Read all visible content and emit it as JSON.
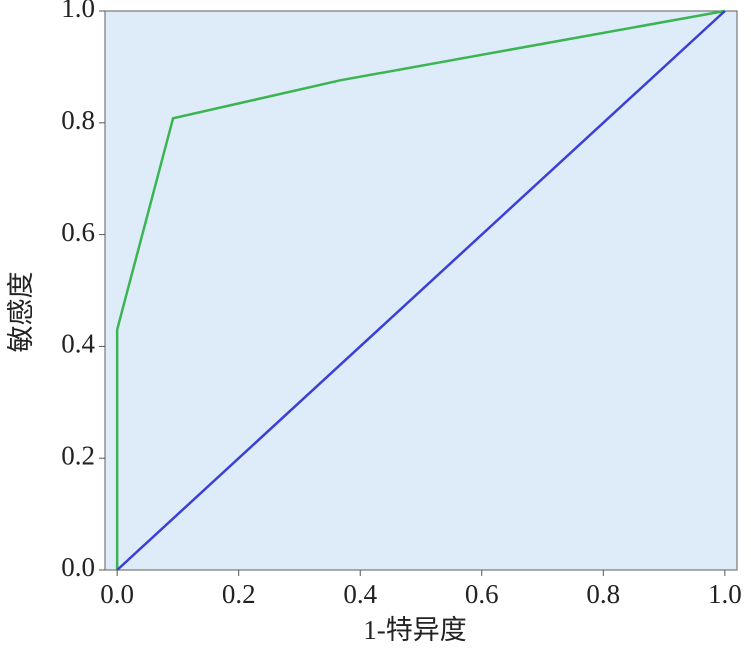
{
  "chart_data": {
    "type": "line",
    "xlabel": "1-特异度",
    "ylabel": "敏感度",
    "xlim": [
      -0.02,
      1.02
    ],
    "ylim": [
      0,
      1
    ],
    "xticks": [
      {
        "value": 0,
        "label": "0.0"
      },
      {
        "value": 0.2,
        "label": "0.2"
      },
      {
        "value": 0.4,
        "label": "0.4"
      },
      {
        "value": 0.6,
        "label": "0.6"
      },
      {
        "value": 0.8,
        "label": "0.8"
      },
      {
        "value": 1,
        "label": "1.0"
      }
    ],
    "yticks": [
      {
        "value": 0,
        "label": "0.0"
      },
      {
        "value": 0.2,
        "label": "0.2"
      },
      {
        "value": 0.4,
        "label": "0.4"
      },
      {
        "value": 0.6,
        "label": "0.6"
      },
      {
        "value": 0.8,
        "label": "0.8"
      },
      {
        "value": 1,
        "label": "1.0"
      }
    ],
    "background": "#deebf8",
    "series": [
      {
        "color": "#3bb552",
        "x": [
          0,
          0,
          0.092,
          0.367,
          1
        ],
        "values": [
          0,
          0.43,
          0.808,
          0.876,
          1
        ]
      },
      {
        "color": "#3b3fd6",
        "x": [
          0,
          1
        ],
        "values": [
          0,
          1
        ]
      }
    ]
  }
}
